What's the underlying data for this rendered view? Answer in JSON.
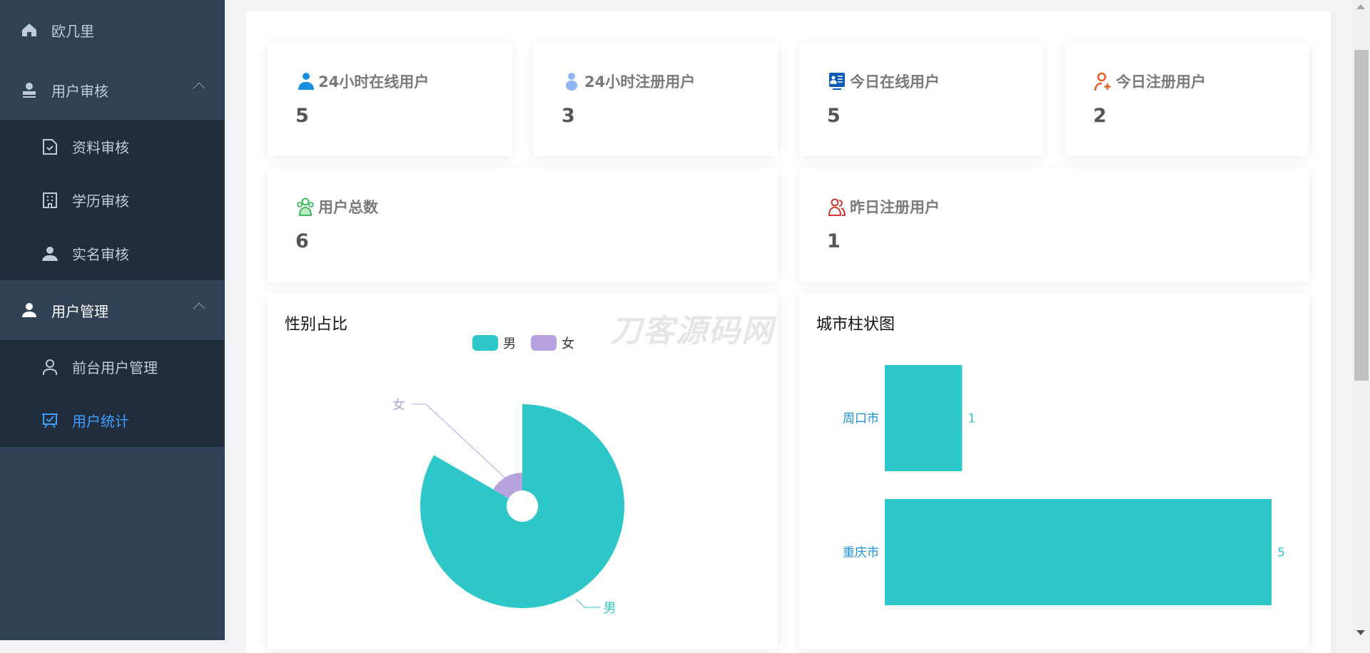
{
  "sidebar": {
    "home": {
      "label": "欧几里",
      "icon": "home-icon"
    },
    "groups": [
      {
        "label": "用户审核",
        "icon": "stamp-icon",
        "expanded": true,
        "items": [
          {
            "label": "资料审核",
            "icon": "document-check-icon"
          },
          {
            "label": "学历审核",
            "icon": "building-icon"
          },
          {
            "label": "实名审核",
            "icon": "user-badge-icon"
          }
        ]
      },
      {
        "label": "用户管理",
        "icon": "user-icon",
        "expanded": true,
        "items": [
          {
            "label": "前台用户管理",
            "icon": "user-outline-icon"
          },
          {
            "label": "用户统计",
            "icon": "chart-board-icon",
            "active": true
          }
        ]
      }
    ]
  },
  "stats": [
    {
      "label": "24小时在线用户",
      "value": "5",
      "icon": "user-online-icon",
      "color": "#1a8fdc"
    },
    {
      "label": "24小时注册用户",
      "value": "3",
      "icon": "user-icon",
      "color": "#8fb6f7"
    },
    {
      "label": "今日在线用户",
      "value": "5",
      "icon": "id-card-icon",
      "color": "#0a5bb5"
    },
    {
      "label": "今日注册用户",
      "value": "2",
      "icon": "user-add-icon",
      "color": "#e2622a"
    },
    {
      "label": "用户总数",
      "value": "6",
      "icon": "users-icon",
      "color": "#27b34a"
    },
    {
      "label": "昨日注册用户",
      "value": "1",
      "icon": "users-outline-icon",
      "color": "#d4231c"
    }
  ],
  "watermark": "刀客源码网",
  "colors": {
    "accent": "#409eff",
    "teal": "#2ec7c9",
    "purple": "#b6a2de"
  },
  "chart_data": [
    {
      "type": "pie",
      "title": "性别占比",
      "rose": true,
      "legend": "top",
      "categories": [
        "男",
        "女"
      ],
      "values": [
        5,
        1
      ],
      "colors": [
        "#2ec7c9",
        "#b6a2de"
      ]
    },
    {
      "type": "bar",
      "orientation": "horizontal",
      "title": "城市柱状图",
      "categories": [
        "周口市",
        "重庆市"
      ],
      "values": [
        1,
        5
      ],
      "xlim": [
        0,
        5
      ],
      "grid": false,
      "color": "#2ec7c9"
    }
  ]
}
